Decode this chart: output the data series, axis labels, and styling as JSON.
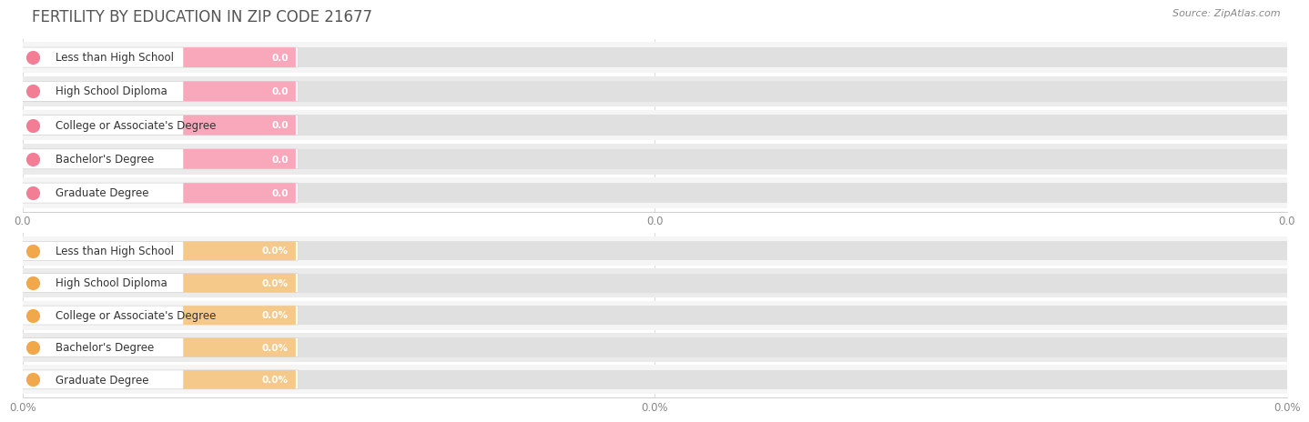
{
  "title": "FERTILITY BY EDUCATION IN ZIP CODE 21677",
  "source": "Source: ZipAtlas.com",
  "categories": [
    "Less than High School",
    "High School Diploma",
    "College or Associate's Degree",
    "Bachelor's Degree",
    "Graduate Degree"
  ],
  "top_values": [
    0.0,
    0.0,
    0.0,
    0.0,
    0.0
  ],
  "bottom_values": [
    0.0,
    0.0,
    0.0,
    0.0,
    0.0
  ],
  "top_bar_color": "#F9A8BC",
  "top_circle_color": "#F47D96",
  "bottom_bar_color": "#F5C98A",
  "bottom_circle_color": "#F0A84A",
  "top_value_labels": [
    "0.0",
    "0.0",
    "0.0",
    "0.0",
    "0.0"
  ],
  "bottom_value_labels": [
    "0.0%",
    "0.0%",
    "0.0%",
    "0.0%",
    "0.0%"
  ],
  "top_xticklabels": [
    "0.0",
    "0.0",
    "0.0"
  ],
  "bottom_xticklabels": [
    "0.0%",
    "0.0%",
    "0.0%"
  ],
  "background_color": "#FFFFFF",
  "row_colors": [
    "#F5F5F5",
    "#EBEBEB"
  ],
  "bar_bg_color": "#E0E0E0",
  "title_fontsize": 12,
  "label_fontsize": 8.5,
  "value_fontsize": 7.5,
  "tick_fontsize": 8.5,
  "source_fontsize": 8,
  "title_color": "#555555",
  "source_color": "#888888",
  "label_color": "#333333",
  "tick_color": "#888888"
}
